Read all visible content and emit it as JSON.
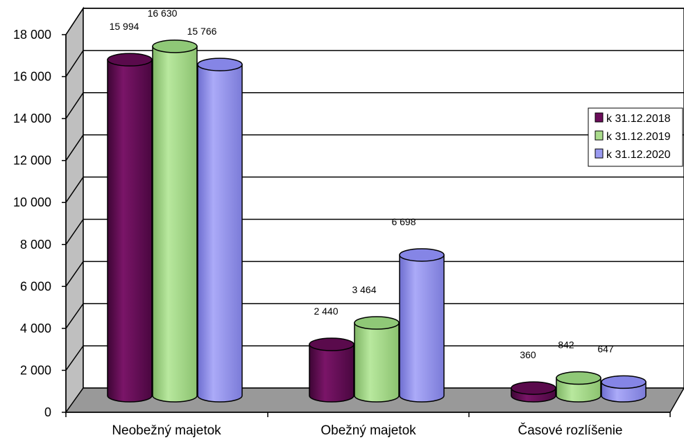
{
  "chart_data": {
    "type": "bar",
    "style": "3d-cylinder",
    "categories": [
      "Neobežný majetok",
      "Obežný majetok",
      "Časové rozlíšenie"
    ],
    "series": [
      {
        "name": "k 31.12.2018",
        "values": [
          15994,
          2440,
          360
        ],
        "labels": [
          "15 994",
          "2 440",
          "360"
        ],
        "color": "#6b0c5a"
      },
      {
        "name": "k 31.12.2019",
        "values": [
          16630,
          3464,
          842
        ],
        "labels": [
          "16 630",
          "3 464",
          "842"
        ],
        "color": "#aadc8c"
      },
      {
        "name": "k 31.12.2020",
        "values": [
          15766,
          6698,
          647
        ],
        "labels": [
          "15 766",
          "6 698",
          "647"
        ],
        "color": "#9a9af0"
      }
    ],
    "yticks": [
      "0",
      "2 000",
      "4 000",
      "6 000",
      "8 000",
      "10 000",
      "12 000",
      "14 000",
      "16 000",
      "18 000"
    ],
    "ylim": [
      0,
      18000
    ],
    "grid": true,
    "legend": "right",
    "colors": {
      "floor": "#999999",
      "wall": "#ffffff",
      "side_wall": "#bfbfbf"
    }
  }
}
